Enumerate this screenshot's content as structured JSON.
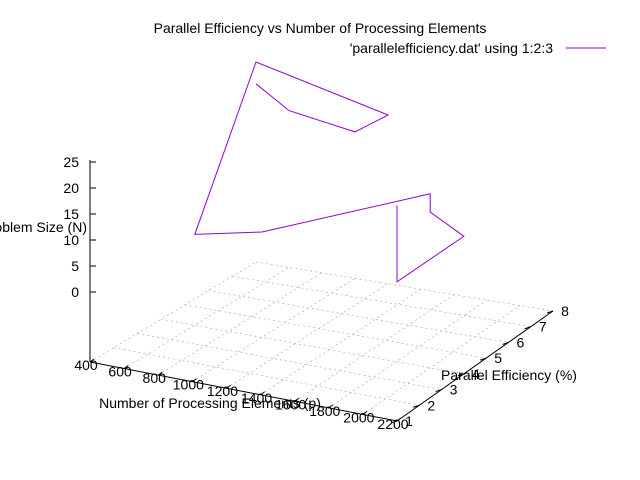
{
  "chart_data": {
    "type": "line3d",
    "title": "Parallel Efficiency vs Number of Processing Elements",
    "xlabel": "Number of Processing Elements (p)",
    "ylabel": "Parallel Efficiency (%)",
    "zlabel": "Problem Size (N)",
    "xticks": [
      400,
      600,
      800,
      1000,
      1200,
      1400,
      1600,
      1800,
      2000,
      2200
    ],
    "yticks": [
      1,
      2,
      3,
      4,
      5,
      6,
      7,
      8
    ],
    "zticks": [
      0,
      5,
      10,
      15,
      20,
      25
    ],
    "xlim": [
      400,
      2200
    ],
    "ylim": [
      1,
      8
    ],
    "zlim": [
      0,
      25
    ],
    "grid": true,
    "legend_position": "top-right",
    "series": [
      {
        "name": "'parallelefficiency.dat' using 1:2:3",
        "color": "#9400d3",
        "points": [
          {
            "x": 400,
            "y": 8.0,
            "z": 20.8
          },
          {
            "x": 600,
            "y": 8.0,
            "z": 16.7
          },
          {
            "x": 1000,
            "y": 8.0,
            "z": 14.7
          },
          {
            "x": 1200,
            "y": 8.0,
            "z": 19.0
          },
          {
            "x": 400,
            "y": 8.0,
            "z": 25.0
          },
          {
            "x": 600,
            "y": 4.0,
            "z": 4.0
          },
          {
            "x": 1000,
            "y": 4.0,
            "z": 6.8
          },
          {
            "x": 2000,
            "y": 4.0,
            "z": 20.0
          },
          {
            "x": 2000,
            "y": 4.0,
            "z": 16.5
          },
          {
            "x": 2200,
            "y": 4.0,
            "z": 13.0
          },
          {
            "x": 2200,
            "y": 1.0,
            "z": 13.3
          },
          {
            "x": 2200,
            "y": 1.0,
            "z": 28.0
          }
        ]
      }
    ]
  }
}
